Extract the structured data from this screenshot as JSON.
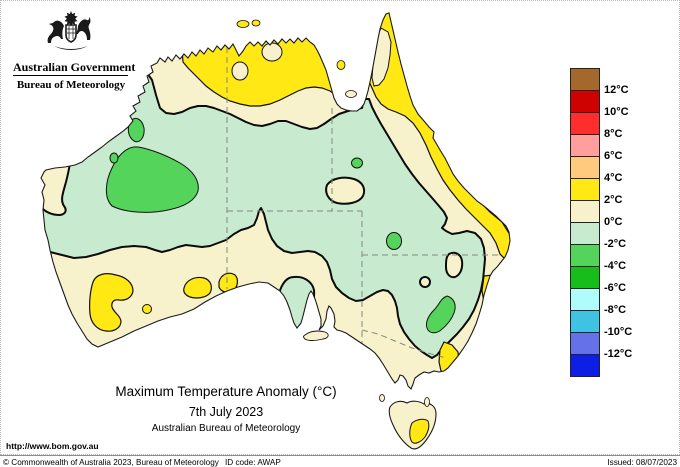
{
  "header": {
    "government": "Australian Government",
    "bureau": "Bureau of Meteorology"
  },
  "title": {
    "line1": "Maximum Temperature Anomaly (°C)",
    "line2": "7th July 2023",
    "line3": "Australian Bureau of Meteorology"
  },
  "url": "http://www.bom.gov.au",
  "footer": {
    "copyright": "© Commonwealth of Australia 2023, Bureau of Meteorology",
    "id_code": "ID code: AWAP",
    "issued": "Issued: 08/07/2023"
  },
  "legend": {
    "labels": [
      "12°C",
      "10°C",
      "8°C",
      "6°C",
      "4°C",
      "2°C",
      "0°C",
      "-2°C",
      "-4°C",
      "-6°C",
      "-8°C",
      "-10°C",
      "-12°C"
    ],
    "colors": [
      "#A5682C",
      "#CE0200",
      "#FF2E2C",
      "#FF9E9C",
      "#FFCA7D",
      "#FFE813",
      "#F8F2CC",
      "#C8EACE",
      "#54D45B",
      "#17BD1B",
      "#B0FBFB",
      "#40C3E3",
      "#6471E9",
      "#0D1FE4"
    ]
  },
  "map": {
    "colors": {
      "sea": "#FFFFFF",
      "anomaly_0_to_2": "#F8F2CC",
      "anomaly_0_to_minus2": "#C8EACE",
      "anomaly_minus2_to_minus4": "#54D45B",
      "anomaly_2_to_4": "#FFE813",
      "anomaly_4_to_6": "#F5AA5F"
    }
  }
}
